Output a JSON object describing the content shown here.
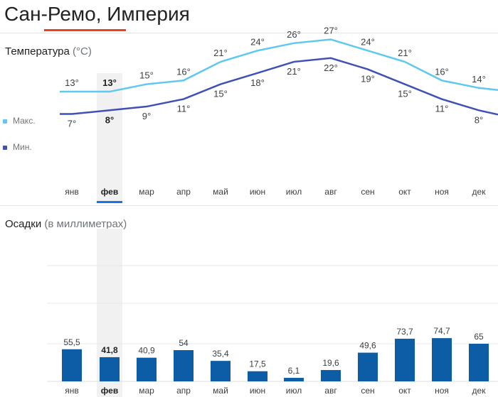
{
  "page": {
    "title": "Сан-Ремо, Империя"
  },
  "temperature": {
    "heading": "Температура",
    "unit": "(°C)",
    "legend": {
      "max": "Макс.",
      "min": "Мин."
    },
    "colors": {
      "max": "#5ec8f0",
      "min": "#3f51b5"
    }
  },
  "precipitation": {
    "heading": "Осадки",
    "unit": "(в миллиметрах)",
    "color": "#0d5ca6"
  },
  "selected_month_index": 1,
  "accent_color": "#1a73e8",
  "chart_data": [
    {
      "type": "line",
      "categories": [
        "янв",
        "фев",
        "мар",
        "апр",
        "май",
        "июн",
        "июл",
        "авг",
        "сен",
        "окт",
        "ноя",
        "дек"
      ],
      "series": [
        {
          "name": "Макс.",
          "values": [
            13,
            13,
            15,
            16,
            21,
            24,
            26,
            27,
            24,
            21,
            16,
            14
          ]
        },
        {
          "name": "Мин.",
          "values": [
            7,
            8,
            9,
            11,
            15,
            18,
            21,
            22,
            19,
            15,
            11,
            8
          ]
        }
      ],
      "value_suffix": "°",
      "title": "Температура (°C)"
    },
    {
      "type": "bar",
      "categories": [
        "янв",
        "фев",
        "мар",
        "апр",
        "май",
        "июн",
        "июл",
        "авг",
        "сен",
        "окт",
        "ноя",
        "дек"
      ],
      "values": [
        55.5,
        41.8,
        40.9,
        54,
        35.4,
        17.5,
        6.1,
        19.6,
        49.6,
        73.7,
        74.7,
        65
      ],
      "value_labels": [
        "55,5",
        "41,8",
        "40,9",
        "54",
        "35,4",
        "17,5",
        "6,1",
        "19,6",
        "49,6",
        "73,7",
        "74,7",
        "65"
      ],
      "title": "Осадки (в миллиметрах)",
      "grid": true
    }
  ]
}
